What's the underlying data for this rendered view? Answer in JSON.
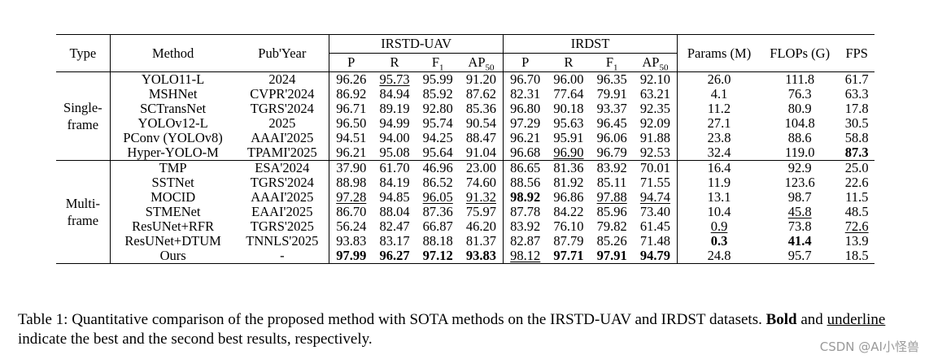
{
  "header": {
    "type": "Type",
    "method": "Method",
    "pub_year": "Pub'Year",
    "group1": "IRSTD-UAV",
    "group2": "IRDST",
    "params": "Params (M)",
    "flops": "FLOPs (G)",
    "fps": "FPS",
    "sub_p": "P",
    "sub_r": "R",
    "sub_f_base": "F",
    "sub_f_sub": "1",
    "sub_ap_base": "AP",
    "sub_ap_sub": "50"
  },
  "groups": [
    {
      "type": "Single-frame",
      "rows": [
        {
          "method": "YOLO11-L",
          "pub": "2024",
          "cells": [
            "96.26",
            "95.73",
            "95.99",
            "91.20",
            "96.70",
            "96.00",
            "96.35",
            "92.10",
            "26.0",
            "111.8",
            "61.7"
          ],
          "style": [
            "",
            "u",
            "",
            "",
            "",
            "",
            "",
            "",
            "",
            "",
            ""
          ]
        },
        {
          "method": "MSHNet",
          "pub": "CVPR'2024",
          "cells": [
            "86.92",
            "84.94",
            "85.92",
            "87.62",
            "82.31",
            "77.64",
            "79.91",
            "63.21",
            "4.1",
            "76.3",
            "63.3"
          ],
          "style": [
            "",
            "",
            "",
            "",
            "",
            "",
            "",
            "",
            "",
            "",
            ""
          ]
        },
        {
          "method": "SCTransNet",
          "pub": "TGRS'2024",
          "cells": [
            "96.71",
            "89.19",
            "92.80",
            "85.36",
            "96.80",
            "90.18",
            "93.37",
            "92.35",
            "11.2",
            "80.9",
            "17.8"
          ],
          "style": [
            "",
            "",
            "",
            "",
            "",
            "",
            "",
            "",
            "",
            "",
            ""
          ]
        },
        {
          "method": "YOLOv12-L",
          "pub": "2025",
          "cells": [
            "96.50",
            "94.99",
            "95.74",
            "90.54",
            "97.29",
            "95.63",
            "96.45",
            "92.09",
            "27.1",
            "104.8",
            "30.5"
          ],
          "style": [
            "",
            "",
            "",
            "",
            "",
            "",
            "",
            "",
            "",
            "",
            ""
          ]
        },
        {
          "method": "PConv (YOLOv8)",
          "pub": "AAAI'2025",
          "cells": [
            "94.51",
            "94.00",
            "94.25",
            "88.47",
            "96.21",
            "95.91",
            "96.06",
            "91.88",
            "23.8",
            "88.6",
            "58.8"
          ],
          "style": [
            "",
            "",
            "",
            "",
            "",
            "",
            "",
            "",
            "",
            "",
            ""
          ]
        },
        {
          "method": "Hyper-YOLO-M",
          "pub": "TPAMI'2025",
          "cells": [
            "96.21",
            "95.08",
            "95.64",
            "91.04",
            "96.68",
            "96.90",
            "96.79",
            "92.53",
            "32.4",
            "119.0",
            "87.3"
          ],
          "style": [
            "",
            "",
            "",
            "",
            "",
            "u",
            "",
            "",
            "",
            "",
            "b"
          ]
        }
      ]
    },
    {
      "type": "Multi-frame",
      "rows": [
        {
          "method": "TMP",
          "pub": "ESA'2024",
          "cells": [
            "37.90",
            "61.70",
            "46.96",
            "23.00",
            "86.65",
            "81.36",
            "83.92",
            "70.01",
            "16.4",
            "92.9",
            "25.0"
          ],
          "style": [
            "",
            "",
            "",
            "",
            "",
            "",
            "",
            "",
            "",
            "",
            ""
          ]
        },
        {
          "method": "SSTNet",
          "pub": "TGRS'2024",
          "cells": [
            "88.98",
            "84.19",
            "86.52",
            "74.60",
            "88.56",
            "81.92",
            "85.11",
            "71.55",
            "11.9",
            "123.6",
            "22.6"
          ],
          "style": [
            "",
            "",
            "",
            "",
            "",
            "",
            "",
            "",
            "",
            "",
            ""
          ]
        },
        {
          "method": "MOCID",
          "pub": "AAAI'2025",
          "cells": [
            "97.28",
            "94.85",
            "96.05",
            "91.32",
            "98.92",
            "96.86",
            "97.88",
            "94.74",
            "13.1",
            "98.7",
            "11.5"
          ],
          "style": [
            "u",
            "",
            "u",
            "u",
            "b",
            "",
            "u",
            "u",
            "",
            "",
            ""
          ]
        },
        {
          "method": "STMENet",
          "pub": "EAAI'2025",
          "cells": [
            "86.70",
            "88.04",
            "87.36",
            "75.97",
            "87.78",
            "84.22",
            "85.96",
            "73.40",
            "10.4",
            "45.8",
            "48.5"
          ],
          "style": [
            "",
            "",
            "",
            "",
            "",
            "",
            "",
            "",
            "",
            "u",
            ""
          ]
        },
        {
          "method": "ResUNet+RFR",
          "pub": "TGRS'2025",
          "cells": [
            "56.24",
            "82.47",
            "66.87",
            "46.20",
            "83.92",
            "76.10",
            "79.82",
            "61.45",
            "0.9",
            "73.8",
            "72.6"
          ],
          "style": [
            "",
            "",
            "",
            "",
            "",
            "",
            "",
            "",
            "u",
            "",
            "u"
          ]
        },
        {
          "method": "ResUNet+DTUM",
          "pub": "TNNLS'2025",
          "cells": [
            "93.83",
            "83.17",
            "88.18",
            "81.37",
            "82.87",
            "87.79",
            "85.26",
            "71.48",
            "0.3",
            "41.4",
            "13.9"
          ],
          "style": [
            "",
            "",
            "",
            "",
            "",
            "",
            "",
            "",
            "b",
            "b",
            ""
          ]
        },
        {
          "method": "Ours",
          "pub": "-",
          "method_bold": true,
          "cells": [
            "97.99",
            "96.27",
            "97.12",
            "93.83",
            "98.12",
            "97.71",
            "97.91",
            "94.79",
            "24.8",
            "95.7",
            "18.5"
          ],
          "style": [
            "b",
            "b",
            "b",
            "b",
            "u",
            "b",
            "b",
            "b",
            "",
            "",
            ""
          ]
        }
      ]
    }
  ],
  "caption": {
    "prefix": "Table 1: Quantitative comparison of the proposed method with SOTA methods on the IRSTD-UAV and IRDST datasets.",
    "bold_word": "Bold",
    "and": "and",
    "underline_word": "underline",
    "suffix": "indicate the best and the second best results, respectively."
  },
  "watermark": "CSDN @AI小怪兽"
}
